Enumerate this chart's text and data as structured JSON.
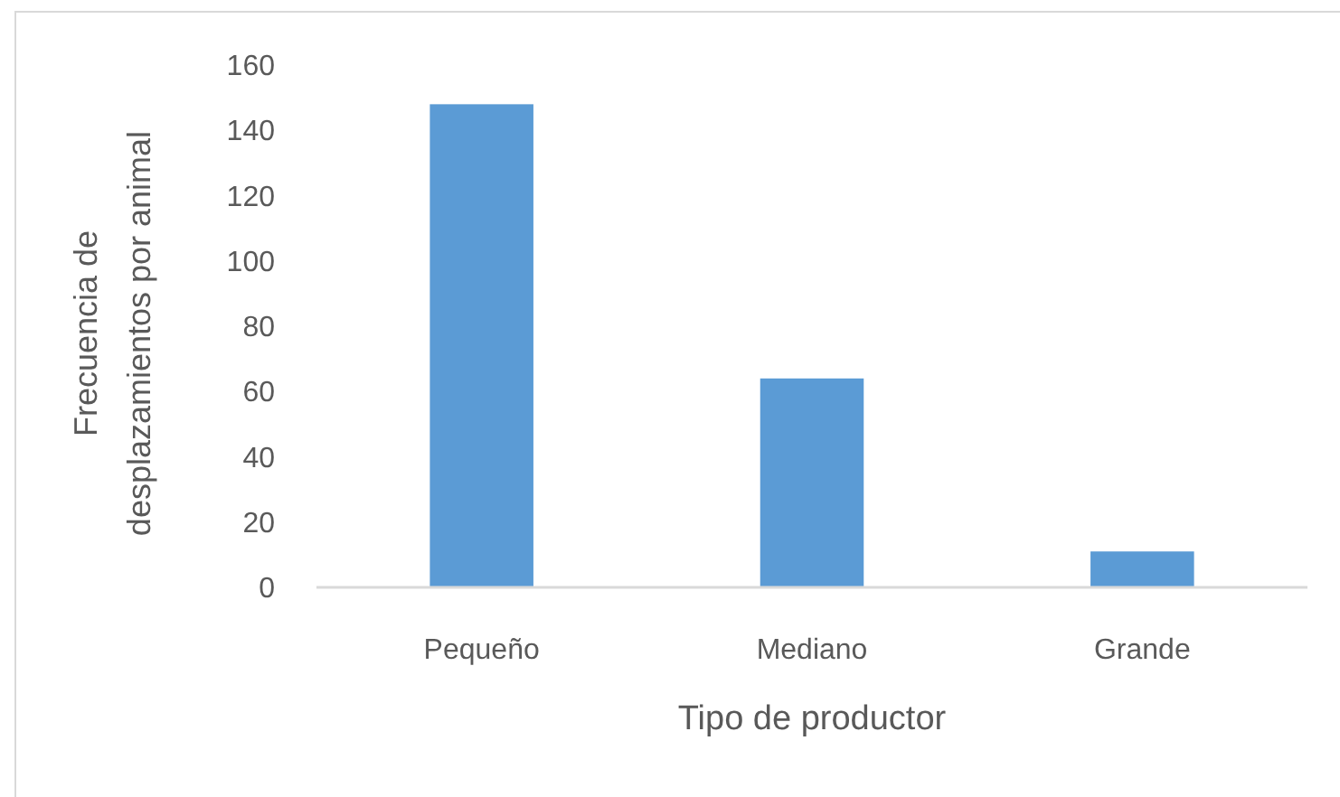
{
  "chart_data": {
    "type": "bar",
    "xlabel": "Tipo de productor",
    "ylabel": "Frecuencia de desplazamientos por animal",
    "categories": [
      "Pequeño",
      "Mediano",
      "Grande"
    ],
    "values": [
      148,
      64,
      11
    ],
    "color": "#5b9bd5",
    "ylim": [
      0,
      160
    ],
    "yticks": [
      0,
      20,
      40,
      60,
      80,
      100,
      120,
      140,
      160
    ]
  }
}
